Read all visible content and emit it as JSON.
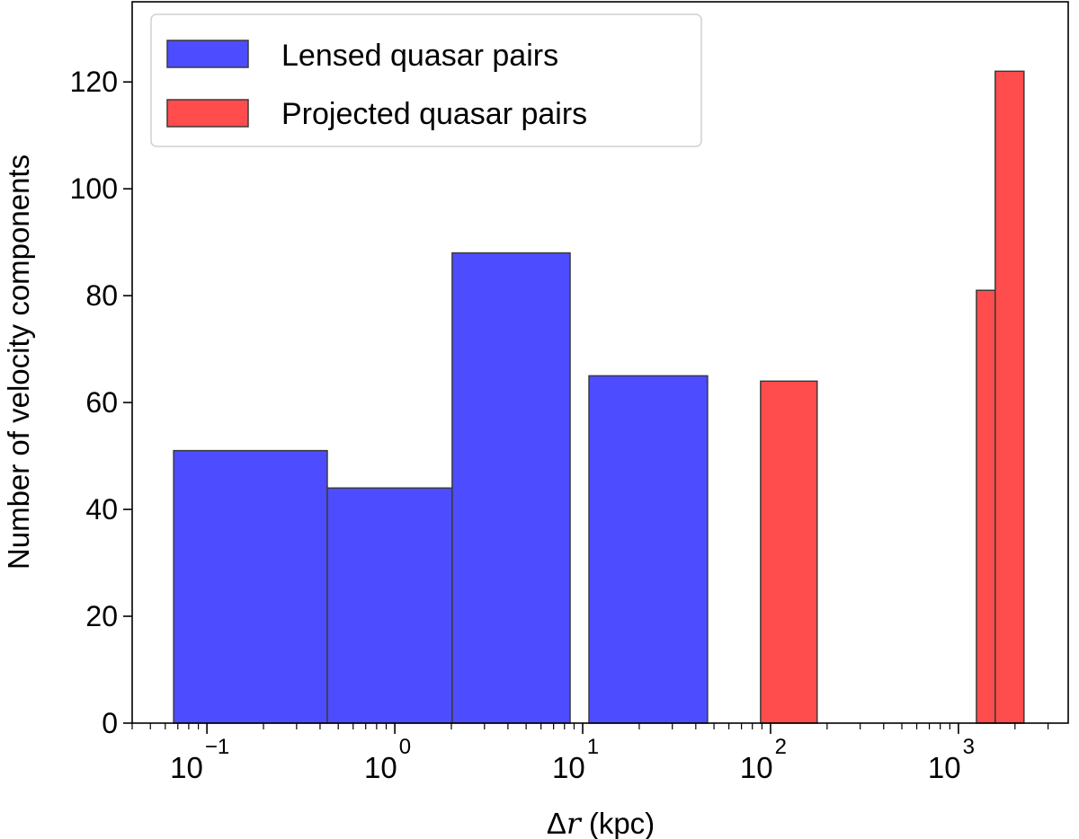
{
  "chart_data": {
    "type": "bar",
    "title": "",
    "xlabel": "Δr (kpc)",
    "xlabel_parts": {
      "symbol": "Δ",
      "var": "r",
      "unit": " (kpc)"
    },
    "ylabel": "Number of velocity components",
    "xscale": "log",
    "xlim": [
      0.04,
      3840
    ],
    "ylim": [
      0,
      135
    ],
    "yticks": [
      0,
      20,
      40,
      60,
      80,
      100,
      120
    ],
    "xticks": [
      {
        "base": "10",
        "exp": "−1"
      },
      {
        "base": "10",
        "exp": "0"
      },
      {
        "base": "10",
        "exp": "1"
      },
      {
        "base": "10",
        "exp": "2"
      },
      {
        "base": "10",
        "exp": "3"
      }
    ],
    "grid": false,
    "legend_position": "top-left",
    "edge_color": "#3a3a3a",
    "series": [
      {
        "name": "Lensed quasar pairs",
        "color": "#4d4dff",
        "bins": [
          [
            0.0665,
            0.437,
            51
          ],
          [
            0.437,
            2.02,
            44
          ],
          [
            2.02,
            8.57,
            88
          ],
          [
            10.8,
            46.2,
            65
          ]
        ]
      },
      {
        "name": "Projected quasar pairs",
        "color": "#ff4d4d",
        "bins": [
          [
            88.5,
            177,
            64
          ],
          [
            1247,
            1570,
            81
          ],
          [
            1570,
            2233,
            122
          ]
        ]
      }
    ]
  }
}
